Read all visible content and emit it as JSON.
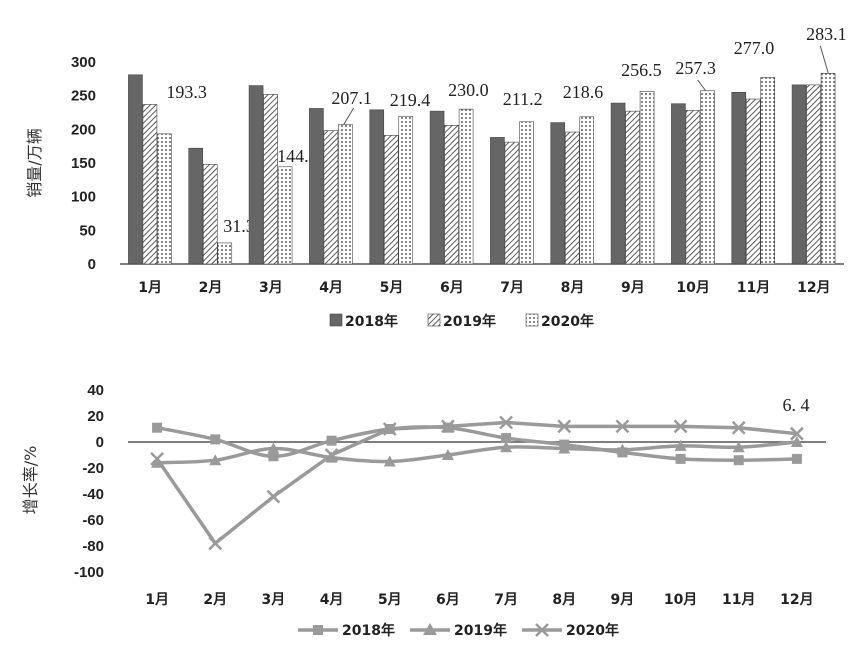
{
  "chart_data": [
    {
      "type": "bar",
      "ylabel": "销量/万辆",
      "ylim": [
        0,
        300
      ],
      "yticks": [
        0,
        50,
        100,
        150,
        200,
        250,
        300
      ],
      "categories": [
        "1月",
        "2月",
        "3月",
        "4月",
        "5月",
        "6月",
        "7月",
        "8月",
        "9月",
        "10月",
        "11月",
        "12月"
      ],
      "series": [
        {
          "name": "2018年",
          "values": [
            281,
            172,
            265,
            231,
            229,
            227,
            188,
            210,
            239,
            238,
            255,
            266
          ]
        },
        {
          "name": "2019年",
          "values": [
            237,
            148,
            252,
            198,
            191,
            206,
            181,
            196,
            227,
            228,
            245,
            266
          ]
        },
        {
          "name": "2020年",
          "values": [
            193.3,
            31.3,
            144.4,
            207.1,
            219.4,
            230.0,
            211.2,
            218.6,
            256.5,
            257.3,
            277.0,
            283.1
          ]
        }
      ],
      "data_labels": [
        "193.3",
        "31.3",
        "144.4",
        "207.1",
        "219.4",
        "230.0",
        "211.2",
        "218.6",
        "256.5",
        "257.3",
        "277.0",
        "283.1"
      ],
      "legend_position": "bottom"
    },
    {
      "type": "line",
      "ylabel": "增长率/%",
      "ylim": [
        -100,
        40
      ],
      "yticks": [
        40,
        20,
        0,
        -20,
        -40,
        -60,
        -80,
        -100
      ],
      "categories": [
        "1月",
        "2月",
        "3月",
        "4月",
        "5月",
        "6月",
        "7月",
        "8月",
        "9月",
        "10月",
        "11月",
        "12月"
      ],
      "series": [
        {
          "name": "2018年",
          "values": [
            11,
            2,
            -11,
            1,
            10,
            11,
            3,
            -2,
            -8,
            -13,
            -14,
            -13
          ]
        },
        {
          "name": "2019年",
          "values": [
            -16,
            -14,
            -5,
            -12,
            -15,
            -10,
            -4,
            -5,
            -6,
            -3,
            -4,
            0
          ]
        },
        {
          "name": "2020年",
          "values": [
            -13,
            -78,
            -42,
            -10,
            10,
            12,
            15,
            12,
            12,
            12,
            11,
            6.4
          ]
        }
      ],
      "annotation": "6. 4",
      "legend_position": "bottom"
    }
  ],
  "colors": {
    "s2018": "#666666",
    "line": "#9a9a9a",
    "axis": "#555555"
  }
}
